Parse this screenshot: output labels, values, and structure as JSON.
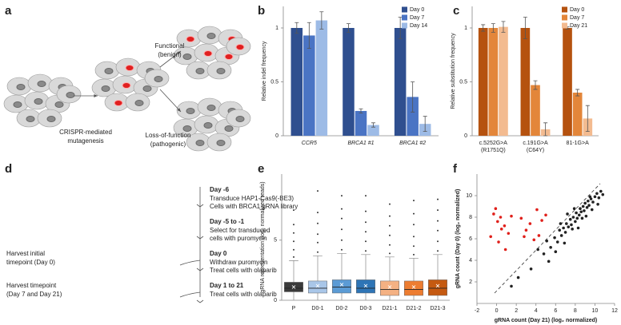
{
  "panel_labels": [
    "a",
    "b",
    "c",
    "d",
    "e",
    "f"
  ],
  "diagram_a": {
    "mutagenesis": [
      "CRISPR-mediated",
      "mutagenesis"
    ],
    "functional": [
      "Functional",
      "(benign)"
    ],
    "lof": [
      "Loss-of-function",
      "(pathogenic)"
    ]
  },
  "protocol": {
    "steps": [
      {
        "day": "Day -6",
        "lines": [
          "Transduce HAP1-Cas9(-BE3)",
          "Cells with BRCA1 gRNA library"
        ]
      },
      {
        "day": "Day -5 to -1",
        "lines": [
          "Select for transduced",
          "cells with puromycin"
        ]
      },
      {
        "day": "Day 0",
        "lines": [
          "Withdraw puromycin",
          "Treat cells with olaparib"
        ]
      },
      {
        "day": "Day 1 to 21",
        "lines": [
          "Treat cells with olaparib"
        ]
      }
    ],
    "harvest": [
      [
        "Harvest initial",
        "timepoint (Day 0)"
      ],
      [
        "Harvest timepoint",
        "(Day 7 and Day 21)"
      ]
    ]
  },
  "chart_data": [
    {
      "type": "bar",
      "ylabel": "Relative indel frequency",
      "categories": [
        "CCR5",
        "BRCA1 #1",
        "BRCA1 #2"
      ],
      "ylim": [
        0,
        1.2
      ],
      "yticks": [
        0,
        0.5,
        1
      ],
      "legend": "upper right",
      "series": [
        {
          "name": "Day 0",
          "color": "#2f4f8f",
          "values": [
            1.0,
            1.0,
            1.0
          ],
          "errors": [
            0.05,
            0.04,
            0.1
          ]
        },
        {
          "name": "Day 7",
          "color": "#4a74c4",
          "values": [
            0.93,
            0.23,
            0.36
          ],
          "errors": [
            0.12,
            0.02,
            0.14
          ]
        },
        {
          "name": "Day 14",
          "color": "#9dbbe6",
          "values": [
            1.07,
            0.1,
            0.11
          ],
          "errors": [
            0.08,
            0.02,
            0.07
          ]
        }
      ]
    },
    {
      "type": "bar",
      "ylabel": "Relative substitution frequency",
      "categories": [
        "c.5252G>A",
        "c.191G>A",
        "81-1G>A"
      ],
      "category_notes": [
        "(R1751Q)",
        "(C64Y)",
        null
      ],
      "ylim": [
        0,
        1.2
      ],
      "yticks": [
        0,
        0.5,
        1
      ],
      "legend": "upper right",
      "series": [
        {
          "name": "Day 0",
          "color": "#b5520f",
          "values": [
            1.0,
            1.0,
            1.0
          ],
          "errors": [
            0.03,
            0.1,
            0.01
          ]
        },
        {
          "name": "Day 7",
          "color": "#e3863a",
          "values": [
            1.0,
            0.47,
            0.4
          ],
          "errors": [
            0.04,
            0.04,
            0.03
          ]
        },
        {
          "name": "Day 21",
          "color": "#f3bb90",
          "values": [
            1.01,
            0.06,
            0.16
          ],
          "errors": [
            0.05,
            0.06,
            0.12
          ]
        }
      ]
    },
    {
      "type": "box",
      "ylabel": "gRNA representation (log₂ normalized reads)",
      "categories": [
        "P",
        "D0-1",
        "D0-2",
        "D0-3",
        "D21-1",
        "D21-2",
        "D21-3"
      ],
      "colors": [
        "#3a3a3a",
        "#a9c6e8",
        "#5b9bd5",
        "#2e75b6",
        "#f4b183",
        "#ed7d31",
        "#c55a11"
      ],
      "ylim": [
        0,
        10.5
      ],
      "yticks": [
        0,
        5
      ],
      "whisker_low": [
        0,
        0,
        0,
        0,
        0,
        0,
        0
      ],
      "q1": [
        0.7,
        0.6,
        0.6,
        0.6,
        0.4,
        0.4,
        0.4
      ],
      "median": [
        1.0,
        1.0,
        1.1,
        1.0,
        0.9,
        0.9,
        1.0
      ],
      "q3": [
        1.5,
        1.6,
        1.7,
        1.7,
        1.6,
        1.6,
        1.7
      ],
      "whisker_high": [
        3.3,
        3.7,
        3.9,
        3.8,
        3.6,
        3.5,
        3.8
      ],
      "means": [
        1.1,
        1.2,
        1.3,
        1.2,
        1.1,
        1.1,
        1.2
      ],
      "outliers": [
        [
          3.6,
          4.2,
          4.9,
          5.6,
          6.3,
          7.5
        ],
        [
          4.0,
          4.8,
          5.5,
          6.4,
          7.3,
          9.1
        ],
        [
          4.2,
          5.0,
          5.9,
          6.8,
          7.6,
          8.7
        ],
        [
          4.1,
          4.9,
          5.7,
          6.5,
          7.4,
          8.7
        ],
        [
          3.9,
          4.6,
          5.4,
          6.2,
          7.0,
          8.0
        ],
        [
          3.8,
          4.5,
          5.3,
          6.3,
          7.2,
          8.3
        ],
        [
          4.1,
          4.9,
          5.8,
          6.6,
          7.5,
          8.4
        ]
      ]
    },
    {
      "type": "scatter",
      "xlabel": "gRNA count (Day 21) (log₂ normalized)",
      "ylabel": "gRNA count (Day 0) (log₂ normalized)",
      "xlim": [
        -2,
        12
      ],
      "ylim": [
        0,
        12
      ],
      "xticks": [
        -2,
        0,
        2,
        4,
        6,
        8,
        10,
        12
      ],
      "yticks": [
        2,
        4,
        6,
        8,
        10
      ],
      "series": [
        {
          "color": "#222222",
          "x": [
            4.2,
            4.8,
            5.1,
            5.5,
            5.9,
            6.2,
            6.4,
            6.6,
            6.8,
            7.0,
            7.1,
            7.3,
            7.5,
            7.6,
            7.8,
            8.0,
            8.1,
            8.2,
            8.4,
            8.5,
            8.6,
            8.8,
            8.9,
            9.0,
            9.2,
            9.3,
            9.4,
            9.6,
            9.8,
            10.0,
            10.2,
            10.4,
            10.6,
            5.3,
            6.0,
            6.9,
            7.7,
            8.3,
            9.1,
            9.7,
            10.3,
            3.5,
            2.2,
            1.5,
            6.5,
            7.2,
            8.7,
            9.5,
            10.8,
            7.9
          ],
          "values": [
            5.0,
            4.6,
            5.8,
            5.2,
            6.1,
            5.7,
            6.8,
            6.3,
            7.0,
            6.6,
            7.4,
            7.1,
            7.8,
            7.3,
            8.0,
            7.6,
            8.4,
            7.9,
            8.2,
            8.8,
            8.5,
            9.0,
            8.6,
            9.3,
            8.9,
            9.5,
            9.1,
            9.7,
            9.4,
            9.9,
            10.2,
            9.8,
            10.4,
            3.9,
            4.8,
            5.6,
            6.9,
            7.0,
            8.1,
            8.7,
            9.2,
            3.2,
            2.4,
            1.6,
            7.4,
            8.3,
            7.9,
            9.9,
            10.1,
            8.8
          ]
        },
        {
          "color": "#e0201b",
          "x": [
            -0.3,
            0.1,
            0.5,
            -0.6,
            0.2,
            0.8,
            1.2,
            -0.1,
            0.4,
            2.5,
            3.0,
            3.4,
            4.1,
            4.6,
            5.0,
            4.3,
            3.8,
            0.9,
            1.5,
            2.8
          ],
          "values": [
            8.3,
            7.6,
            6.9,
            6.2,
            5.7,
            7.2,
            6.5,
            8.8,
            8.0,
            7.9,
            6.8,
            7.4,
            8.7,
            7.7,
            8.2,
            6.3,
            5.9,
            5.0,
            8.1,
            6.2
          ]
        }
      ]
    }
  ]
}
